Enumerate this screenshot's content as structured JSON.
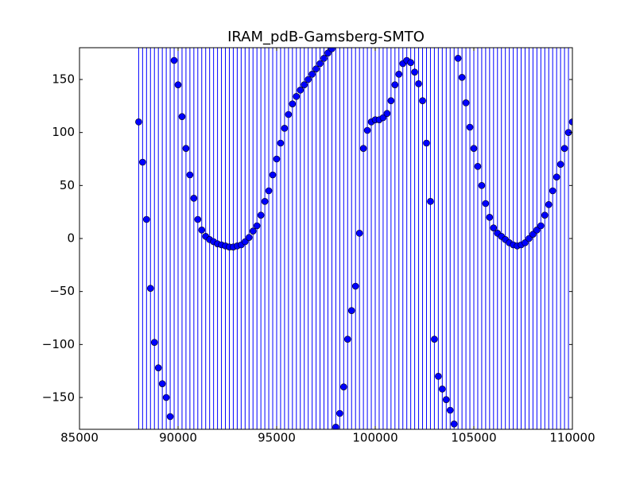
{
  "chart_data": {
    "type": "scatter",
    "title": "IRAM_pdB-Gamsberg-SMTO",
    "x": [
      88000,
      88200,
      88400,
      88600,
      88800,
      89000,
      89200,
      89400,
      89600,
      89800,
      90000,
      90200,
      90400,
      90600,
      90800,
      91000,
      91200,
      91400,
      91600,
      91800,
      92000,
      92200,
      92400,
      92600,
      92800,
      93000,
      93200,
      93400,
      93600,
      93800,
      94000,
      94200,
      94400,
      94600,
      94800,
      95000,
      95200,
      95400,
      95600,
      95800,
      96000,
      96200,
      96400,
      96600,
      96800,
      97000,
      97200,
      97400,
      97600,
      97800,
      98000,
      98200,
      98400,
      98600,
      98800,
      99000,
      99200,
      99400,
      99600,
      99800,
      100000,
      100200,
      100400,
      100600,
      100800,
      101000,
      101200,
      101400,
      101600,
      101800,
      102000,
      102200,
      102400,
      102600,
      102800,
      103000,
      103200,
      103400,
      103600,
      103800,
      104000,
      104200,
      104400,
      104600,
      104800,
      105000,
      105200,
      105400,
      105600,
      105800,
      106000,
      106200,
      106400,
      106600,
      106800,
      107000,
      107200,
      107400,
      107600,
      107800,
      108000,
      108200,
      108400,
      108600,
      108800,
      109000,
      109200,
      109400,
      109600,
      109800,
      110000
    ],
    "values": [
      110,
      72,
      18,
      -47,
      -98,
      -122,
      -137,
      -150,
      -168,
      168,
      145,
      115,
      85,
      60,
      38,
      18,
      8,
      2,
      -1,
      -3,
      -5,
      -6,
      -7,
      -8,
      -8,
      -7,
      -6,
      -3,
      1,
      7,
      12,
      22,
      35,
      45,
      60,
      75,
      90,
      104,
      117,
      127,
      134,
      140,
      145,
      150,
      155,
      160,
      165,
      170,
      175,
      179,
      -178,
      -165,
      -140,
      -95,
      -68,
      -45,
      5,
      85,
      102,
      110,
      112,
      112,
      114,
      118,
      130,
      145,
      155,
      165,
      168,
      166,
      157,
      146,
      130,
      90,
      35,
      -95,
      -130,
      -142,
      -152,
      -162,
      -175,
      170,
      152,
      128,
      105,
      85,
      68,
      50,
      33,
      20,
      10,
      5,
      2,
      -1,
      -4,
      -6,
      -7,
      -6,
      -4,
      0,
      4,
      8,
      12,
      22,
      32,
      45,
      58,
      70,
      85,
      100,
      110
    ],
    "color": "#0000ff",
    "xlim": [
      85000,
      110000
    ],
    "ylim": [
      -180,
      180
    ],
    "xticks": [
      85000,
      90000,
      95000,
      100000,
      105000,
      110000
    ],
    "yticks": [
      -150,
      -100,
      -50,
      0,
      50,
      100,
      150
    ]
  }
}
